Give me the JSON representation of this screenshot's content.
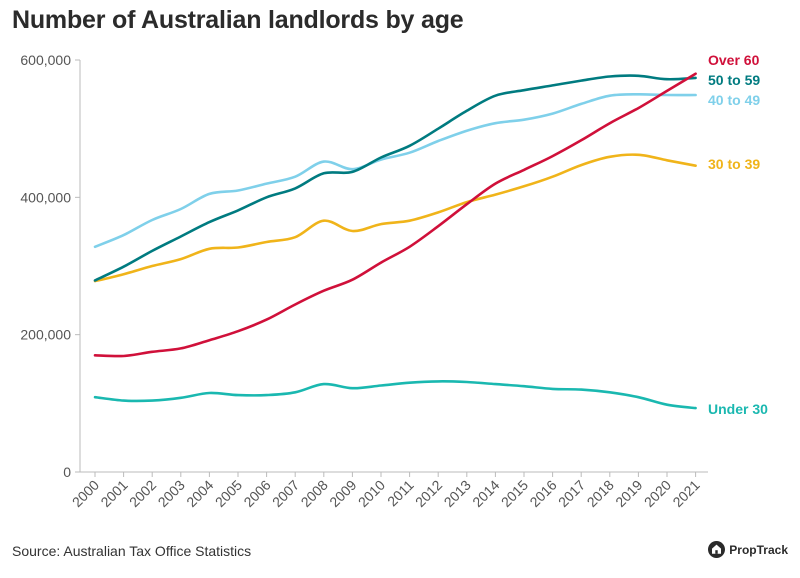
{
  "title": "Number of Australian landlords by age",
  "source": "Source: Australian Tax Office Statistics",
  "brand": {
    "name": "PropTrack",
    "icon": "house-logo-icon"
  },
  "chart_data": {
    "type": "line",
    "title": "Number of Australian landlords by age",
    "xlabel": "",
    "ylabel": "",
    "ylim": [
      0,
      600000
    ],
    "yticks": [
      0,
      200000,
      400000,
      600000
    ],
    "ytick_labels": [
      "0",
      "200,000",
      "400,000",
      "600,000"
    ],
    "grid": false,
    "legend": "inline labels at right end of lines",
    "categories": [
      "2000",
      "2001",
      "2002",
      "2003",
      "2004",
      "2005",
      "2006",
      "2007",
      "2008",
      "2009",
      "2010",
      "2011",
      "2012",
      "2013",
      "2014",
      "2015",
      "2016",
      "2017",
      "2018",
      "2019",
      "2020",
      "2021"
    ],
    "series": [
      {
        "name": "Over 60",
        "color": "#d0103a",
        "values": [
          170000,
          169000,
          175000,
          180000,
          192000,
          205000,
          222000,
          244000,
          264000,
          280000,
          305000,
          328000,
          358000,
          390000,
          420000,
          440000,
          460000,
          483000,
          508000,
          530000,
          555000,
          580000
        ]
      },
      {
        "name": "50 to 59",
        "color": "#007b80",
        "values": [
          279000,
          299000,
          322000,
          343000,
          364000,
          381000,
          400000,
          413000,
          435000,
          437000,
          458000,
          475000,
          500000,
          526000,
          548000,
          556000,
          563000,
          570000,
          576000,
          577000,
          572000,
          574000
        ]
      },
      {
        "name": "40 to 49",
        "color": "#7fd0ea",
        "values": [
          328000,
          345000,
          367000,
          383000,
          405000,
          410000,
          420000,
          430000,
          452000,
          441000,
          455000,
          465000,
          482000,
          497000,
          508000,
          513000,
          522000,
          536000,
          548000,
          550000,
          549000,
          549000
        ]
      },
      {
        "name": "30 to 39",
        "color": "#f0b41a",
        "values": [
          278000,
          288000,
          300000,
          310000,
          325000,
          327000,
          335000,
          342000,
          366000,
          351000,
          361000,
          366000,
          378000,
          393000,
          404000,
          416000,
          430000,
          447000,
          459000,
          462000,
          454000,
          446000
        ]
      },
      {
        "name": "Under 30",
        "color": "#1ab8b0",
        "values": [
          109000,
          104000,
          104000,
          108000,
          115000,
          112000,
          112000,
          116000,
          128000,
          122000,
          126000,
          130000,
          132000,
          131000,
          128000,
          125000,
          121000,
          120000,
          116000,
          109000,
          98000,
          93000
        ]
      }
    ]
  }
}
